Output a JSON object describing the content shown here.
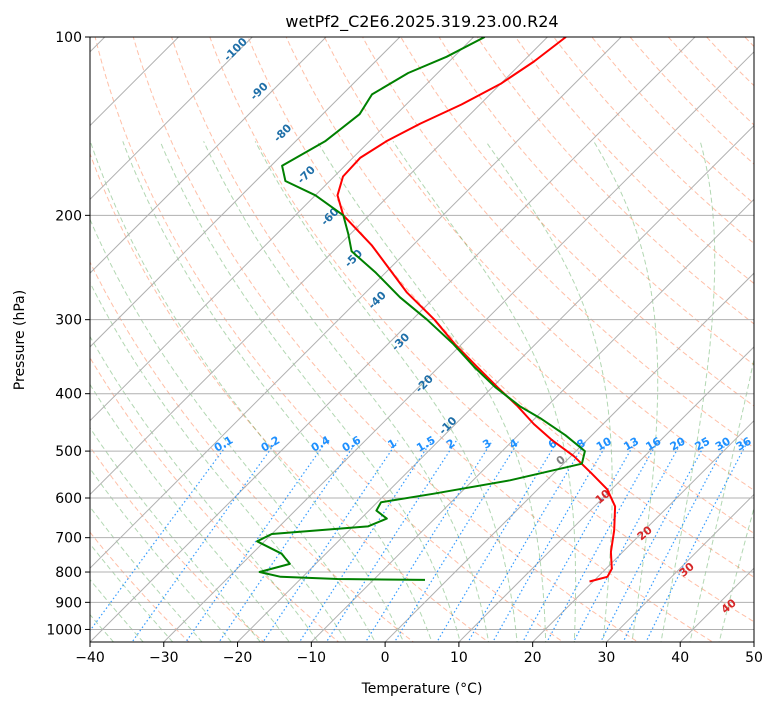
{
  "chart_data": {
    "type": "line",
    "title": "wetPf2_C2E6.2025.319.23.00.R24",
    "xlabel": "Temperature (°C)",
    "ylabel": "Pressure (hPa)",
    "xlim": [
      -40,
      50
    ],
    "ylim": [
      1050,
      100
    ],
    "y_scale": "log",
    "skew": true,
    "grid": true,
    "x_ticks": [
      "−40",
      "−30",
      "−20",
      "−10",
      "0",
      "10",
      "20",
      "30",
      "40",
      "50"
    ],
    "y_ticks": [
      "100",
      "200",
      "300",
      "400",
      "500",
      "600",
      "700",
      "800",
      "900",
      "1000"
    ],
    "dry_adiabat_labels": [
      "-100",
      "-90",
      "-80",
      "-70",
      "-60",
      "-50",
      "-40",
      "-30",
      "-20",
      "-10"
    ],
    "moist_adiabat_labels": [
      "0",
      "10",
      "20",
      "30",
      "40"
    ],
    "mixing_ratio_labels": [
      "0.1",
      "0.2",
      "0.4",
      "0.6",
      "1",
      "1.5",
      "2",
      "3",
      "4",
      "6",
      "8",
      "10",
      "13",
      "16",
      "20",
      "25",
      "30",
      "36"
    ],
    "series": [
      {
        "key": "temperature",
        "color": "#ff0000",
        "points": [
          {
            "p": 830,
            "t": 19.5
          },
          {
            "p": 815,
            "t": 21.3
          },
          {
            "p": 790,
            "t": 20.8
          },
          {
            "p": 740,
            "t": 18.4
          },
          {
            "p": 680,
            "t": 15.9
          },
          {
            "p": 620,
            "t": 12.8
          },
          {
            "p": 580,
            "t": 9.4
          },
          {
            "p": 545,
            "t": 5.1
          },
          {
            "p": 510,
            "t": 0.4
          },
          {
            "p": 480,
            "t": -4.6
          },
          {
            "p": 450,
            "t": -9.4
          },
          {
            "p": 420,
            "t": -14.0
          },
          {
            "p": 390,
            "t": -19.3
          },
          {
            "p": 360,
            "t": -24.9
          },
          {
            "p": 330,
            "t": -30.9
          },
          {
            "p": 300,
            "t": -37.0
          },
          {
            "p": 270,
            "t": -44.4
          },
          {
            "p": 245,
            "t": -50.3
          },
          {
            "p": 225,
            "t": -55.5
          },
          {
            "p": 200,
            "t": -63.5
          },
          {
            "p": 185,
            "t": -67.0
          },
          {
            "p": 172,
            "t": -68.8
          },
          {
            "p": 160,
            "t": -69.0
          },
          {
            "p": 150,
            "t": -67.7
          },
          {
            "p": 140,
            "t": -65.5
          },
          {
            "p": 130,
            "t": -62.5
          },
          {
            "p": 120,
            "t": -60.0
          },
          {
            "p": 110,
            "t": -58.5
          },
          {
            "p": 100,
            "t": -57.5
          }
        ]
      },
      {
        "key": "dewpoint",
        "color": "#008000",
        "points": [
          {
            "p": 825,
            "t": -3.0
          },
          {
            "p": 822,
            "t": -15.0
          },
          {
            "p": 815,
            "t": -23.0
          },
          {
            "p": 800,
            "t": -26.5
          },
          {
            "p": 775,
            "t": -23.5
          },
          {
            "p": 745,
            "t": -26.0
          },
          {
            "p": 710,
            "t": -31.0
          },
          {
            "p": 690,
            "t": -30.0
          },
          {
            "p": 670,
            "t": -18.0
          },
          {
            "p": 650,
            "t": -16.5
          },
          {
            "p": 630,
            "t": -19.0
          },
          {
            "p": 610,
            "t": -19.5
          },
          {
            "p": 590,
            "t": -13.5
          },
          {
            "p": 560,
            "t": -5.0
          },
          {
            "p": 525,
            "t": 2.5
          },
          {
            "p": 500,
            "t": 1.2
          },
          {
            "p": 470,
            "t": -3.6
          },
          {
            "p": 440,
            "t": -9.3
          },
          {
            "p": 420,
            "t": -13.7
          },
          {
            "p": 390,
            "t": -19.6
          },
          {
            "p": 360,
            "t": -25.3
          },
          {
            "p": 330,
            "t": -31.1
          },
          {
            "p": 300,
            "t": -38.0
          },
          {
            "p": 275,
            "t": -44.7
          },
          {
            "p": 250,
            "t": -51.3
          },
          {
            "p": 230,
            "t": -57.5
          },
          {
            "p": 215,
            "t": -60.3
          },
          {
            "p": 200,
            "t": -63.5
          },
          {
            "p": 185,
            "t": -70.0
          },
          {
            "p": 175,
            "t": -76.0
          },
          {
            "p": 165,
            "t": -78.5
          },
          {
            "p": 150,
            "t": -76.0
          },
          {
            "p": 135,
            "t": -75.0
          },
          {
            "p": 125,
            "t": -76.0
          },
          {
            "p": 115,
            "t": -74.0
          },
          {
            "p": 108,
            "t": -71.0
          },
          {
            "p": 100,
            "t": -68.5
          }
        ]
      }
    ],
    "colors": {
      "grid": "#b0b0b0",
      "dry_adiabat": "#ff7f50",
      "moist_adiabat": "#228b22",
      "mixing_ratio": "#1e90ff",
      "dry_label": "#1f6fa8",
      "moist_label": "#d62728",
      "mixing_label": "#1e90ff"
    }
  }
}
